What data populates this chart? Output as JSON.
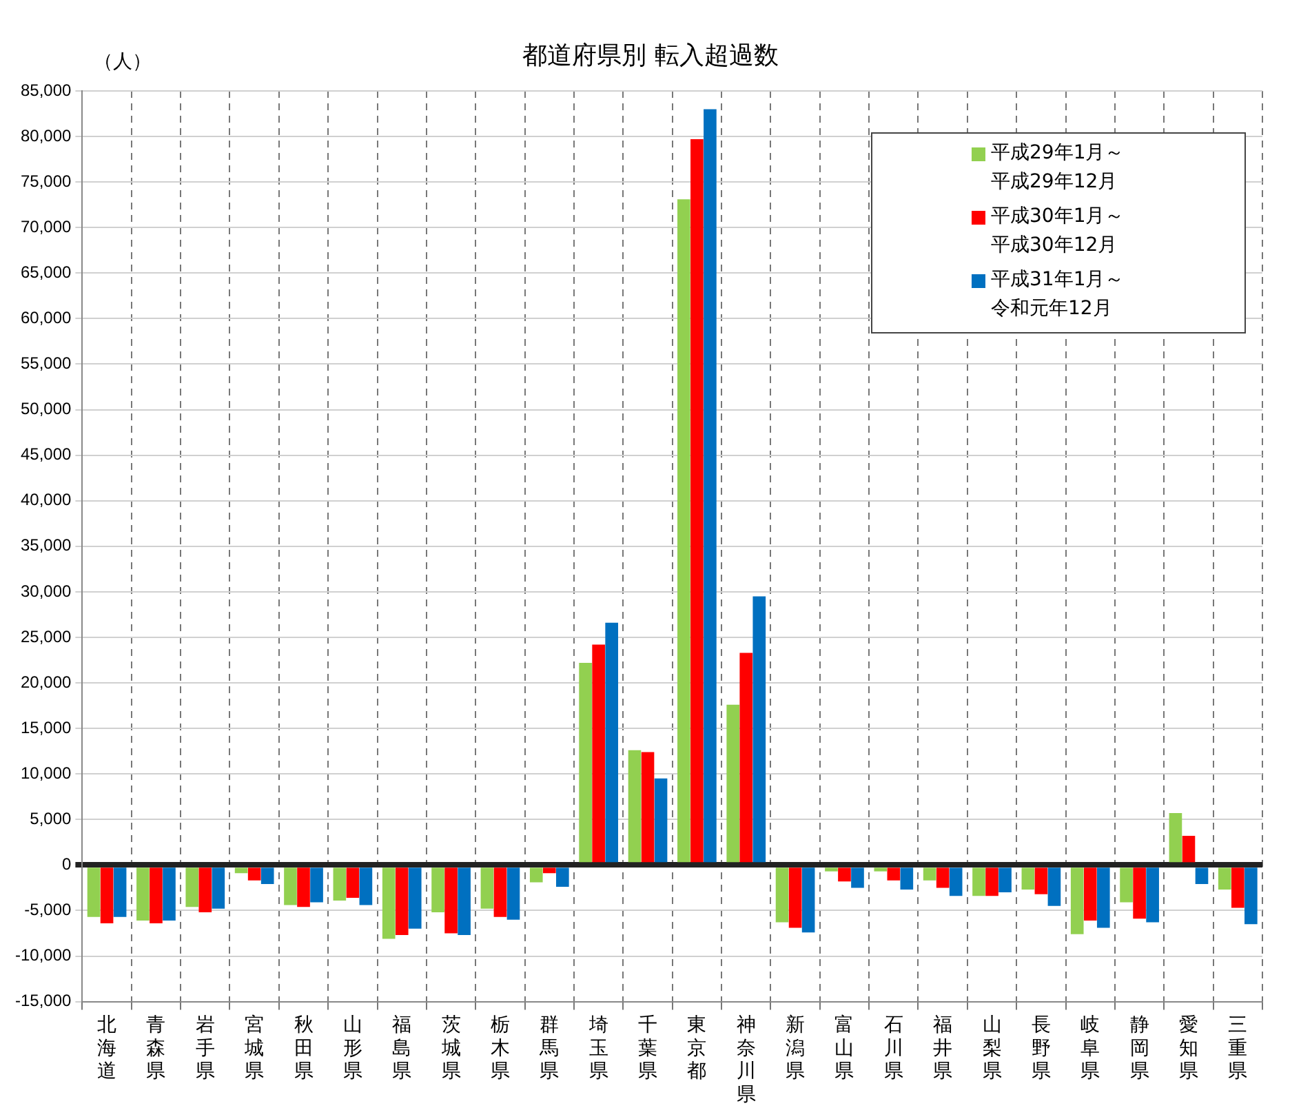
{
  "chart_data": {
    "type": "bar",
    "title": "都道府県別  転入超過数",
    "ylabel": "（人）",
    "categories": [
      "北海道",
      "青森県",
      "岩手県",
      "宮城県",
      "秋田県",
      "山形県",
      "福島県",
      "茨城県",
      "栃木県",
      "群馬県",
      "埼玉県",
      "千葉県",
      "東京都",
      "神奈川県",
      "新潟県",
      "富山県",
      "石川県",
      "福井県",
      "山梨県",
      "長野県",
      "岐阜県",
      "静岡県",
      "愛知県",
      "三重県"
    ],
    "series": [
      {
        "name": "平成29年1月～平成29年12月",
        "color": "#92d050",
        "values": [
          -5700,
          -6100,
          -4600,
          -900,
          -4400,
          -3900,
          -8100,
          -5200,
          -4800,
          -1900,
          22200,
          12600,
          73100,
          17600,
          -6300,
          -700,
          -700,
          -1700,
          -3400,
          -2700,
          -7600,
          -4100,
          5700,
          -2700
        ]
      },
      {
        "name": "平成30年1月～平成30年12月",
        "color": "#ff0000",
        "values": [
          -6400,
          -6400,
          -5200,
          -1700,
          -4600,
          -3600,
          -7700,
          -7500,
          -5700,
          -900,
          24200,
          12400,
          79700,
          23300,
          -6900,
          -1800,
          -1700,
          -2500,
          -3400,
          -3200,
          -6100,
          -5900,
          3200,
          -4700
        ]
      },
      {
        "name": "平成31年1月～令和元年12月",
        "color": "#0070c0",
        "values": [
          -5700,
          -6100,
          -4800,
          -2100,
          -4100,
          -4400,
          -7000,
          -7700,
          -6000,
          -2400,
          26600,
          9500,
          83000,
          29500,
          -7400,
          -2500,
          -2700,
          -3400,
          -3000,
          -4500,
          -6900,
          -6300,
          -2100,
          -6500
        ]
      }
    ],
    "ylim": [
      -15000,
      85000
    ],
    "yticks": [
      {
        "value": -15000,
        "label": "-15,000"
      },
      {
        "value": -10000,
        "label": "-10,000"
      },
      {
        "value": -5000,
        "label": "-5,000"
      },
      0,
      {
        "value": 5000,
        "label": "5,000"
      },
      {
        "value": 10000,
        "label": "10,000"
      },
      {
        "value": 15000,
        "label": "15,000"
      },
      {
        "value": 20000,
        "label": "20,000"
      },
      {
        "value": 25000,
        "label": "25,000"
      },
      {
        "value": 30000,
        "label": "30,000"
      },
      {
        "value": 35000,
        "label": "35,000"
      },
      {
        "value": 40000,
        "label": "40,000"
      },
      {
        "value": 45000,
        "label": "45,000"
      },
      {
        "value": 50000,
        "label": "50,000"
      },
      {
        "value": 55000,
        "label": "55,000"
      },
      {
        "value": 60000,
        "label": "60,000"
      },
      {
        "value": 65000,
        "label": "65,000"
      },
      {
        "value": 70000,
        "label": "70,000"
      },
      {
        "value": 75000,
        "label": "75,000"
      },
      {
        "value": 80000,
        "label": "80,000"
      },
      {
        "value": 85000,
        "label": "85,000"
      }
    ],
    "grid": true,
    "legend": "top right"
  }
}
